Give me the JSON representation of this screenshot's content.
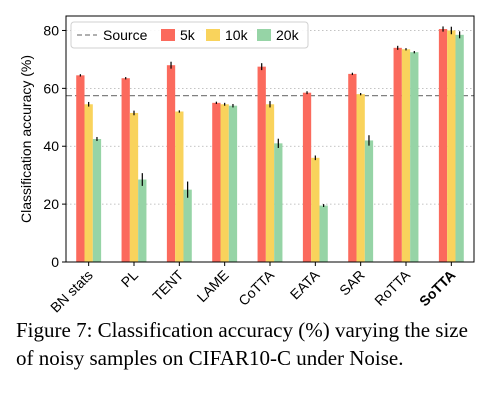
{
  "chart_data": {
    "type": "bar",
    "ylabel": "Classification accuracy (%)",
    "ylim": [
      0,
      85
    ],
    "yticks": [
      0,
      20,
      40,
      60,
      80
    ],
    "grid": "horizontal dotted",
    "legend_position": "top",
    "categories": [
      "BN stats",
      "PL",
      "TENT",
      "LAME",
      "CoTTA",
      "EATA",
      "SAR",
      "RoTTA",
      "SoTTA"
    ],
    "bold_category": "SoTTA",
    "series": [
      {
        "name": "5k",
        "color": "#fb6a5d",
        "values": [
          64.5,
          63.5,
          68.0,
          55.0,
          67.5,
          58.5,
          65.0,
          74.0,
          80.5
        ],
        "errors": [
          0.4,
          0.4,
          1.2,
          0.4,
          1.2,
          0.5,
          0.4,
          0.7,
          0.9
        ]
      },
      {
        "name": "10k",
        "color": "#f9d35c",
        "values": [
          54.5,
          51.5,
          52.0,
          54.5,
          54.5,
          36.0,
          58.0,
          73.5,
          80.0
        ],
        "errors": [
          0.8,
          0.8,
          0.4,
          0.5,
          1.1,
          0.8,
          0.4,
          0.4,
          1.3
        ]
      },
      {
        "name": "20k",
        "color": "#96d4a6",
        "values": [
          42.5,
          28.5,
          25.0,
          54.0,
          41.0,
          19.5,
          42.0,
          72.5,
          78.5
        ],
        "errors": [
          0.7,
          2.2,
          2.8,
          0.6,
          1.6,
          0.5,
          1.8,
          0.4,
          1.2
        ]
      }
    ],
    "reference_line": {
      "name": "Source",
      "value": 57.5,
      "color": "#808080",
      "style": "dashed"
    }
  },
  "caption": "Figure 7: Classification accuracy (%) varying the size of noisy samples on CIFAR10-C under Noise."
}
